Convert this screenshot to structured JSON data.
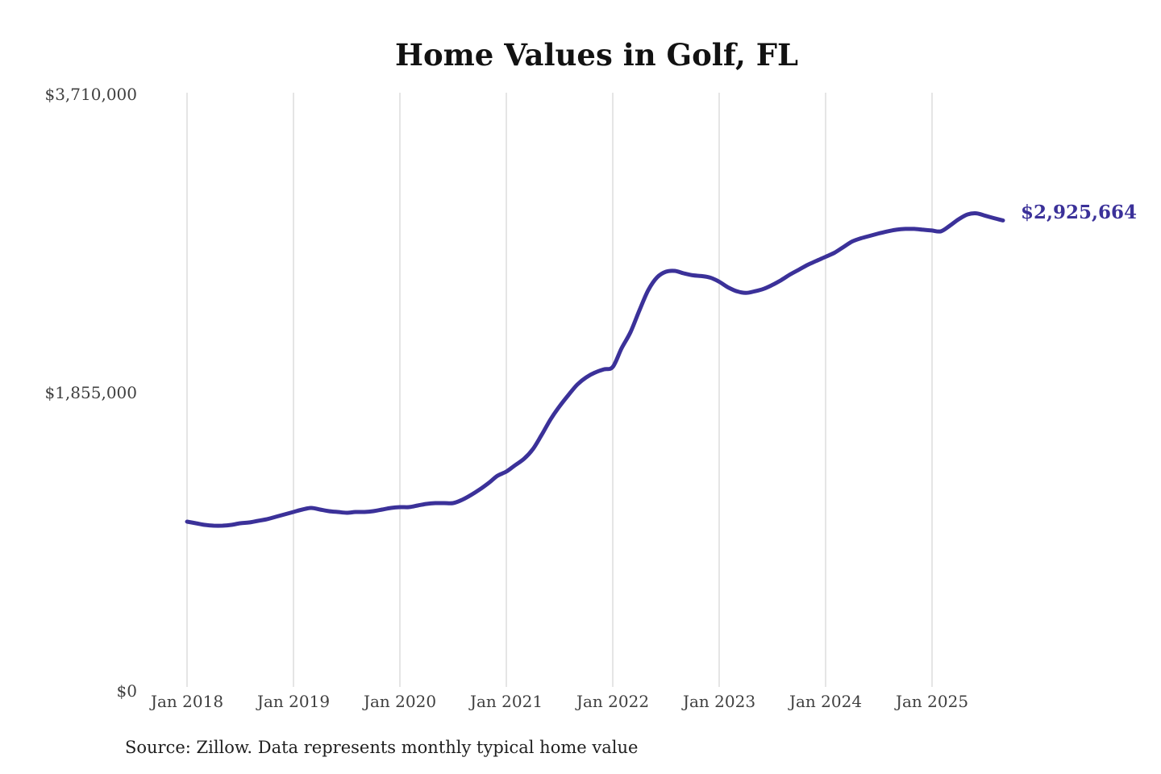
{
  "chart_data": {
    "type": "line",
    "title": "Home Values in Golf, FL",
    "source_note": "Source: Zillow. Data represents monthly typical home value",
    "series_name": "Monthly typical home value",
    "unit": "USD",
    "latest_value_label": "$2,925,664",
    "latest_value": 2925664,
    "ylim": [
      0,
      3710000
    ],
    "grid": "vertical-only",
    "line_color": "#3b3199",
    "grid_color": "#cbcbcb",
    "y_ticks": [
      {
        "value": 0,
        "label": "$0"
      },
      {
        "value": 1855000,
        "label": "$1,855,000"
      },
      {
        "value": 3710000,
        "label": "$3,710,000"
      }
    ],
    "x_tick_labels": [
      "Jan 2018",
      "Jan 2019",
      "Jan 2020",
      "Jan 2021",
      "Jan 2022",
      "Jan 2023",
      "Jan 2024",
      "Jan 2025"
    ],
    "months": [
      "2018-01",
      "2018-02",
      "2018-03",
      "2018-04",
      "2018-05",
      "2018-06",
      "2018-07",
      "2018-08",
      "2018-09",
      "2018-10",
      "2018-11",
      "2018-12",
      "2019-01",
      "2019-02",
      "2019-03",
      "2019-04",
      "2019-05",
      "2019-06",
      "2019-07",
      "2019-08",
      "2019-09",
      "2019-10",
      "2019-11",
      "2019-12",
      "2020-01",
      "2020-02",
      "2020-03",
      "2020-04",
      "2020-05",
      "2020-06",
      "2020-07",
      "2020-08",
      "2020-09",
      "2020-10",
      "2020-11",
      "2020-12",
      "2021-01",
      "2021-02",
      "2021-03",
      "2021-04",
      "2021-05",
      "2021-06",
      "2021-07",
      "2021-08",
      "2021-09",
      "2021-10",
      "2021-11",
      "2021-12",
      "2022-01",
      "2022-02",
      "2022-03",
      "2022-04",
      "2022-05",
      "2022-06",
      "2022-07",
      "2022-08",
      "2022-09",
      "2022-10",
      "2022-11",
      "2022-12",
      "2023-01",
      "2023-02",
      "2023-03",
      "2023-04",
      "2023-05",
      "2023-06",
      "2023-07",
      "2023-08",
      "2023-09",
      "2023-10",
      "2023-11",
      "2023-12",
      "2024-01",
      "2024-02",
      "2024-03",
      "2024-04",
      "2024-05",
      "2024-06",
      "2024-07",
      "2024-08",
      "2024-09",
      "2024-10",
      "2024-11",
      "2024-12",
      "2025-01",
      "2025-02",
      "2025-03",
      "2025-04",
      "2025-05",
      "2025-06",
      "2025-07",
      "2025-08",
      "2025-09"
    ],
    "values": [
      1053000,
      1043000,
      1033000,
      1028000,
      1028000,
      1033000,
      1043000,
      1048000,
      1058000,
      1068000,
      1083000,
      1098000,
      1113000,
      1128000,
      1138000,
      1128000,
      1118000,
      1113000,
      1108000,
      1113000,
      1113000,
      1118000,
      1128000,
      1138000,
      1143000,
      1143000,
      1153000,
      1163000,
      1168000,
      1168000,
      1168000,
      1188000,
      1218000,
      1253000,
      1293000,
      1338000,
      1364000,
      1404000,
      1444000,
      1504000,
      1594000,
      1690000,
      1770000,
      1840000,
      1905000,
      1950000,
      1980000,
      2000000,
      2015000,
      2131000,
      2231000,
      2366000,
      2492000,
      2572000,
      2607000,
      2612000,
      2597000,
      2585000,
      2580000,
      2570000,
      2545000,
      2510000,
      2485000,
      2475000,
      2485000,
      2500000,
      2525000,
      2555000,
      2590000,
      2620000,
      2650000,
      2675000,
      2700000,
      2725000,
      2760000,
      2795000,
      2815000,
      2830000,
      2845000,
      2858000,
      2868000,
      2873000,
      2873000,
      2868000,
      2863000,
      2858000,
      2893000,
      2933000,
      2963000,
      2970000,
      2955000,
      2940000,
      2925664
    ]
  }
}
